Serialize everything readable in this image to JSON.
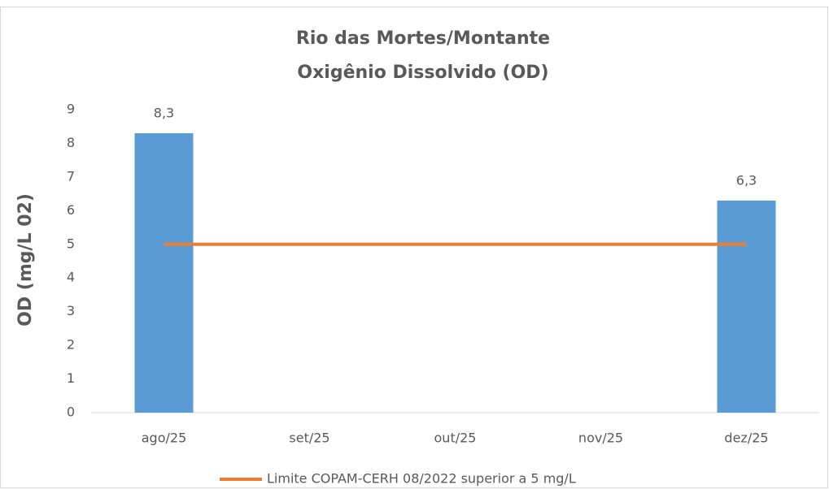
{
  "chart_data": {
    "type": "bar",
    "title": [
      "Rio das Mortes/Montante",
      "Oxigênio Dissolvido (OD)"
    ],
    "y_label": "OD (mg/L 02)",
    "categories": [
      "ago/25",
      "set/25",
      "out/25",
      "nov/25",
      "dez/25"
    ],
    "series": [
      {
        "type": "bar",
        "color": "#5b9bd5",
        "values": [
          8.3,
          null,
          null,
          null,
          6.3
        ],
        "value_labels": [
          "8,3",
          null,
          null,
          null,
          "6,3"
        ]
      },
      {
        "type": "line",
        "name": "Limite COPAM-CERH 08/2022 superior a 5 mg/L",
        "color": "#ed7d31",
        "values": [
          5,
          5,
          5,
          5,
          5
        ]
      }
    ],
    "ylim": [
      0,
      9
    ],
    "yticks": [
      0,
      1,
      2,
      3,
      4,
      5,
      6,
      7,
      8,
      9
    ],
    "grid": false,
    "legend": "bottom"
  }
}
